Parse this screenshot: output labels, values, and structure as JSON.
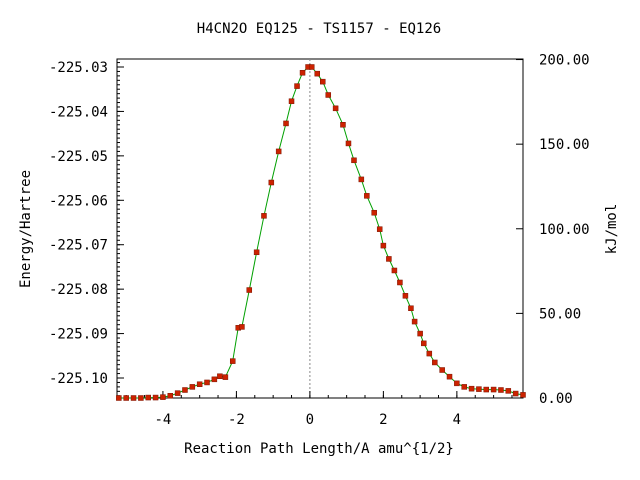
{
  "chart_data": {
    "type": "line",
    "title": "H4CN2O   EQ125 - TS1157 - EQ126",
    "xlabel": "Reaction Path Length/A amu^{1/2}",
    "ylabel": "Energy/Hartree",
    "ylabel_right": "kJ/mol",
    "xlim": [
      -5.25,
      5.8
    ],
    "ylim": [
      -225.1045,
      -225.0282
    ],
    "x_ticks": [
      -4,
      -2,
      0,
      2,
      4
    ],
    "x_tick_labels": [
      "-4",
      "-2",
      "0",
      "2",
      "4"
    ],
    "y_ticks": [
      -225.1,
      -225.09,
      -225.08,
      -225.07,
      -225.06,
      -225.05,
      -225.04,
      -225.03
    ],
    "y_tick_labels": [
      "-225.10",
      "-225.09",
      "-225.08",
      "-225.07",
      "-225.06",
      "-225.05",
      "-225.04",
      "-225.03"
    ],
    "y2_ticks": [
      0,
      50,
      100,
      150,
      200
    ],
    "y2_tick_labels": [
      "0.00",
      "50.00",
      "100.00",
      "150.00",
      "200.00"
    ],
    "y2_zero_energy": -225.1045,
    "kj_per_hartree": 2625.5,
    "ts_x": 0,
    "grid": false,
    "colors": {
      "line": "#00a000",
      "marker": "#cc2200",
      "axis": "#000000",
      "ts_line": "#888888"
    },
    "series": [
      {
        "x": [
          -5.2,
          -5.0,
          -4.8,
          -4.6,
          -4.4,
          -4.2,
          -4.0,
          -3.8,
          -3.6,
          -3.4,
          -3.2,
          -3.0,
          -2.8,
          -2.6,
          -2.45,
          -2.3,
          -2.1,
          -1.95,
          -1.85,
          -1.65,
          -1.45,
          -1.25,
          -1.05,
          -0.85,
          -0.65,
          -0.5,
          -0.35,
          -0.2,
          -0.05,
          0.05,
          0.2,
          0.35,
          0.5,
          0.7,
          0.9,
          1.05,
          1.2,
          1.4,
          1.55,
          1.75,
          1.9,
          2.0,
          2.15,
          2.3,
          2.45,
          2.6,
          2.75,
          2.85,
          3.0,
          3.1,
          3.25,
          3.4,
          3.6,
          3.8,
          4.0,
          4.2,
          4.4,
          4.6,
          4.8,
          5.0,
          5.2,
          5.4,
          5.6,
          5.8
        ],
        "y": [
          -225.1045,
          -225.1045,
          -225.1045,
          -225.1045,
          -225.1044,
          -225.1044,
          -225.1043,
          -225.104,
          -225.1034,
          -225.1027,
          -225.102,
          -225.1014,
          -225.101,
          -225.1003,
          -225.0996,
          -225.0998,
          -225.0962,
          -225.0887,
          -225.0885,
          -225.0802,
          -225.0717,
          -225.0635,
          -225.056,
          -225.049,
          -225.0427,
          -225.0377,
          -225.0343,
          -225.0313,
          -225.03,
          -225.03,
          -225.0315,
          -225.0333,
          -225.0363,
          -225.0393,
          -225.043,
          -225.0472,
          -225.051,
          -225.0553,
          -225.059,
          -225.0628,
          -225.0665,
          -225.0702,
          -225.0732,
          -225.0758,
          -225.0785,
          -225.0815,
          -225.0843,
          -225.0873,
          -225.09,
          -225.0922,
          -225.0945,
          -225.0965,
          -225.0982,
          -225.0997,
          -225.1012,
          -225.102,
          -225.1024,
          -225.1025,
          -225.1026,
          -225.1026,
          -225.1027,
          -225.1029,
          -225.1035,
          -225.1038
        ]
      }
    ]
  }
}
